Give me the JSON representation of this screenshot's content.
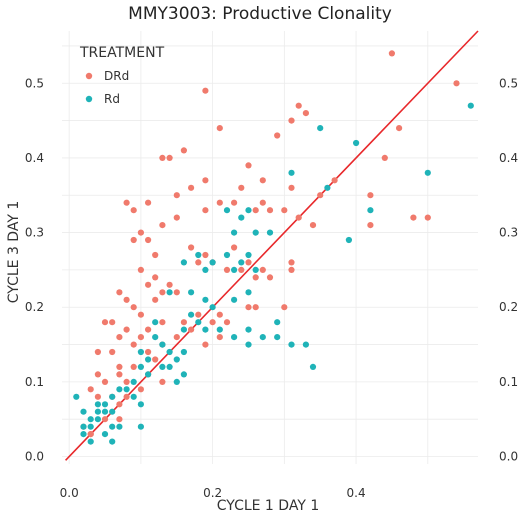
{
  "chart_data": {
    "type": "scatter",
    "title": "MMY3003: Productive Clonality",
    "xlabel": "CYCLE 1 DAY 1",
    "ylabel": "CYCLE 3 DAY 1",
    "xlim": [
      -0.01,
      0.57
    ],
    "ylim": [
      -0.01,
      0.57
    ],
    "x_ticks": [
      0.0,
      0.2,
      0.4
    ],
    "x_tick_labels": [
      "0.0",
      "0.2",
      "0.4"
    ],
    "y_ticks": [
      0.0,
      0.1,
      0.2,
      0.3,
      0.4,
      0.5
    ],
    "y_tick_labels": [
      "0.0",
      "0.1",
      "0.2",
      "0.3",
      "0.4",
      "0.5"
    ],
    "y_axis_right_duplicate": true,
    "grid": true,
    "legend": {
      "title": "TREATMENT",
      "position": "top-left"
    },
    "reference_line": {
      "type": "identity",
      "color": "#e8282b"
    },
    "series": [
      {
        "name": "DRd",
        "color": "#f07a6c",
        "points": [
          [
            0.45,
            0.54
          ],
          [
            0.54,
            0.5
          ],
          [
            0.19,
            0.49
          ],
          [
            0.32,
            0.47
          ],
          [
            0.33,
            0.46
          ],
          [
            0.21,
            0.44
          ],
          [
            0.31,
            0.45
          ],
          [
            0.46,
            0.44
          ],
          [
            0.29,
            0.43
          ],
          [
            0.13,
            0.4
          ],
          [
            0.14,
            0.4
          ],
          [
            0.16,
            0.41
          ],
          [
            0.25,
            0.39
          ],
          [
            0.44,
            0.4
          ],
          [
            0.27,
            0.37
          ],
          [
            0.19,
            0.37
          ],
          [
            0.24,
            0.36
          ],
          [
            0.23,
            0.34
          ],
          [
            0.31,
            0.36
          ],
          [
            0.37,
            0.37
          ],
          [
            0.35,
            0.35
          ],
          [
            0.42,
            0.35
          ],
          [
            0.15,
            0.35
          ],
          [
            0.17,
            0.36
          ],
          [
            0.21,
            0.34
          ],
          [
            0.08,
            0.34
          ],
          [
            0.09,
            0.33
          ],
          [
            0.11,
            0.34
          ],
          [
            0.13,
            0.31
          ],
          [
            0.15,
            0.32
          ],
          [
            0.19,
            0.33
          ],
          [
            0.26,
            0.33
          ],
          [
            0.27,
            0.34
          ],
          [
            0.28,
            0.33
          ],
          [
            0.3,
            0.33
          ],
          [
            0.32,
            0.32
          ],
          [
            0.34,
            0.31
          ],
          [
            0.42,
            0.31
          ],
          [
            0.48,
            0.32
          ],
          [
            0.5,
            0.32
          ],
          [
            0.1,
            0.3
          ],
          [
            0.11,
            0.29
          ],
          [
            0.12,
            0.27
          ],
          [
            0.17,
            0.28
          ],
          [
            0.19,
            0.27
          ],
          [
            0.23,
            0.28
          ],
          [
            0.25,
            0.26
          ],
          [
            0.27,
            0.25
          ],
          [
            0.31,
            0.25
          ],
          [
            0.09,
            0.29
          ],
          [
            0.1,
            0.25
          ],
          [
            0.12,
            0.24
          ],
          [
            0.14,
            0.23
          ],
          [
            0.15,
            0.22
          ],
          [
            0.18,
            0.26
          ],
          [
            0.2,
            0.26
          ],
          [
            0.22,
            0.25
          ],
          [
            0.24,
            0.25
          ],
          [
            0.26,
            0.24
          ],
          [
            0.28,
            0.24
          ],
          [
            0.31,
            0.26
          ],
          [
            0.07,
            0.22
          ],
          [
            0.08,
            0.21
          ],
          [
            0.09,
            0.2
          ],
          [
            0.1,
            0.19
          ],
          [
            0.11,
            0.23
          ],
          [
            0.12,
            0.21
          ],
          [
            0.13,
            0.22
          ],
          [
            0.05,
            0.18
          ],
          [
            0.06,
            0.18
          ],
          [
            0.07,
            0.16
          ],
          [
            0.08,
            0.17
          ],
          [
            0.11,
            0.17
          ],
          [
            0.13,
            0.18
          ],
          [
            0.16,
            0.18
          ],
          [
            0.18,
            0.19
          ],
          [
            0.2,
            0.18
          ],
          [
            0.21,
            0.19
          ],
          [
            0.22,
            0.18
          ],
          [
            0.25,
            0.2
          ],
          [
            0.26,
            0.2
          ],
          [
            0.3,
            0.2
          ],
          [
            0.04,
            0.14
          ],
          [
            0.06,
            0.14
          ],
          [
            0.07,
            0.12
          ],
          [
            0.09,
            0.15
          ],
          [
            0.1,
            0.16
          ],
          [
            0.11,
            0.14
          ],
          [
            0.12,
            0.13
          ],
          [
            0.13,
            0.15
          ],
          [
            0.15,
            0.16
          ],
          [
            0.17,
            0.17
          ],
          [
            0.19,
            0.15
          ],
          [
            0.21,
            0.16
          ],
          [
            0.04,
            0.11
          ],
          [
            0.05,
            0.1
          ],
          [
            0.07,
            0.11
          ],
          [
            0.08,
            0.1
          ],
          [
            0.09,
            0.12
          ],
          [
            0.11,
            0.11
          ],
          [
            0.13,
            0.1
          ],
          [
            0.03,
            0.09
          ],
          [
            0.04,
            0.08
          ],
          [
            0.06,
            0.08
          ],
          [
            0.07,
            0.07
          ],
          [
            0.08,
            0.08
          ],
          [
            0.1,
            0.09
          ],
          [
            0.02,
            0.04
          ],
          [
            0.03,
            0.03
          ],
          [
            0.05,
            0.05
          ],
          [
            0.07,
            0.05
          ],
          [
            0.03,
            0.03
          ]
        ]
      },
      {
        "name": "Rd",
        "color": "#1fb3b8",
        "points": [
          [
            0.56,
            0.47
          ],
          [
            0.35,
            0.44
          ],
          [
            0.4,
            0.42
          ],
          [
            0.36,
            0.36
          ],
          [
            0.31,
            0.38
          ],
          [
            0.42,
            0.33
          ],
          [
            0.5,
            0.38
          ],
          [
            0.39,
            0.29
          ],
          [
            0.22,
            0.33
          ],
          [
            0.24,
            0.32
          ],
          [
            0.25,
            0.33
          ],
          [
            0.26,
            0.3
          ],
          [
            0.28,
            0.3
          ],
          [
            0.23,
            0.3
          ],
          [
            0.22,
            0.27
          ],
          [
            0.24,
            0.26
          ],
          [
            0.25,
            0.27
          ],
          [
            0.23,
            0.25
          ],
          [
            0.2,
            0.26
          ],
          [
            0.19,
            0.25
          ],
          [
            0.18,
            0.27
          ],
          [
            0.16,
            0.26
          ],
          [
            0.26,
            0.25
          ],
          [
            0.17,
            0.22
          ],
          [
            0.19,
            0.21
          ],
          [
            0.2,
            0.2
          ],
          [
            0.23,
            0.21
          ],
          [
            0.25,
            0.22
          ],
          [
            0.17,
            0.19
          ],
          [
            0.18,
            0.18
          ],
          [
            0.16,
            0.17
          ],
          [
            0.19,
            0.17
          ],
          [
            0.21,
            0.17
          ],
          [
            0.23,
            0.16
          ],
          [
            0.25,
            0.17
          ],
          [
            0.25,
            0.15
          ],
          [
            0.29,
            0.18
          ],
          [
            0.27,
            0.16
          ],
          [
            0.29,
            0.16
          ],
          [
            0.31,
            0.15
          ],
          [
            0.33,
            0.15
          ],
          [
            0.34,
            0.12
          ],
          [
            0.14,
            0.22
          ],
          [
            0.12,
            0.18
          ],
          [
            0.12,
            0.16
          ],
          [
            0.13,
            0.15
          ],
          [
            0.14,
            0.14
          ],
          [
            0.15,
            0.13
          ],
          [
            0.16,
            0.14
          ],
          [
            0.1,
            0.14
          ],
          [
            0.11,
            0.13
          ],
          [
            0.1,
            0.12
          ],
          [
            0.11,
            0.11
          ],
          [
            0.13,
            0.12
          ],
          [
            0.14,
            0.12
          ],
          [
            0.15,
            0.1
          ],
          [
            0.16,
            0.11
          ],
          [
            0.09,
            0.1
          ],
          [
            0.08,
            0.09
          ],
          [
            0.09,
            0.08
          ],
          [
            0.1,
            0.07
          ],
          [
            0.07,
            0.09
          ],
          [
            0.06,
            0.08
          ],
          [
            0.05,
            0.07
          ],
          [
            0.06,
            0.06
          ],
          [
            0.05,
            0.06
          ],
          [
            0.04,
            0.07
          ],
          [
            0.04,
            0.06
          ],
          [
            0.04,
            0.05
          ],
          [
            0.03,
            0.05
          ],
          [
            0.03,
            0.04
          ],
          [
            0.02,
            0.03
          ],
          [
            0.02,
            0.04
          ],
          [
            0.03,
            0.02
          ],
          [
            0.01,
            0.08
          ],
          [
            0.02,
            0.06
          ],
          [
            0.06,
            0.02
          ],
          [
            0.1,
            0.04
          ],
          [
            0.05,
            0.03
          ],
          [
            0.07,
            0.04
          ],
          [
            0.06,
            0.04
          ]
        ]
      }
    ]
  }
}
